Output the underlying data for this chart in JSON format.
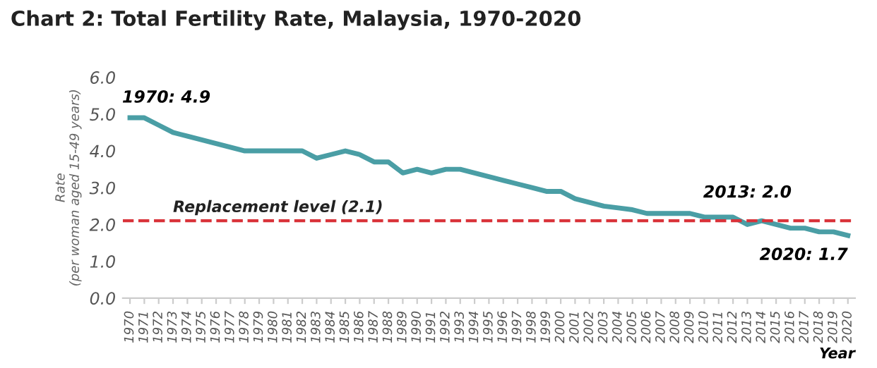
{
  "chart_data": {
    "type": "line",
    "title": "Chart 2: Total Fertility Rate, Malaysia, 1970-2020",
    "xlabel": "Year",
    "ylabel": "Rate\n(per woman aged 15-49 years)",
    "categories": [
      "1970",
      "1971",
      "1972",
      "1973",
      "1974",
      "1975",
      "1976",
      "1977",
      "1978",
      "1979",
      "1980",
      "1981",
      "1982",
      "1983",
      "1984",
      "1985",
      "1986",
      "1987",
      "1988",
      "1989",
      "1990",
      "1991",
      "1992",
      "1993",
      "1994",
      "1995",
      "1996",
      "1997",
      "1998",
      "1999",
      "2000",
      "2001",
      "2002",
      "2003",
      "2004",
      "2005",
      "2006",
      "2007",
      "2008",
      "2009",
      "2010",
      "2011",
      "2012",
      "2013",
      "2014",
      "2015",
      "2016",
      "2017",
      "2018",
      "2019",
      "2020"
    ],
    "series": [
      {
        "color": "#4a9ea5",
        "values": [
          4.9,
          4.9,
          4.7,
          4.5,
          4.4,
          4.3,
          4.2,
          4.1,
          4.0,
          4.0,
          4.0,
          4.0,
          4.0,
          3.8,
          3.9,
          4.0,
          3.9,
          3.7,
          3.7,
          3.4,
          3.5,
          3.4,
          3.5,
          3.5,
          3.4,
          3.3,
          3.2,
          3.1,
          3.0,
          2.9,
          2.9,
          2.7,
          2.6,
          2.5,
          2.45,
          2.4,
          2.3,
          2.3,
          2.3,
          2.3,
          2.2,
          2.2,
          2.2,
          2.0,
          2.1,
          2.0,
          1.9,
          1.9,
          1.8,
          1.8,
          1.7
        ]
      }
    ],
    "ylim": [
      0,
      6
    ],
    "yticks": [
      {
        "value": 0,
        "label": "0.0"
      },
      {
        "value": 1,
        "label": "1.0"
      },
      {
        "value": 2,
        "label": "2.0"
      },
      {
        "value": 3,
        "label": "3.0"
      },
      {
        "value": 4,
        "label": "4.0"
      },
      {
        "value": 5,
        "label": "5.0"
      },
      {
        "value": 6,
        "label": "6.0"
      }
    ],
    "ref_lines": [
      {
        "axis": "y",
        "value": 2.1,
        "label": "Replacement level (2.1)",
        "color": "#d9333a",
        "line_style": "dashed"
      }
    ],
    "annotations": [
      {
        "text": "1970: 4.9",
        "x": "1970",
        "y": 4.9
      },
      {
        "text": "2013: 2.0",
        "x": "2013",
        "y": 2.0
      },
      {
        "text": "2020: 1.7",
        "x": "2020",
        "y": 1.7
      }
    ],
    "grid": false,
    "legend": false,
    "marker": "none",
    "line_style": "solid"
  }
}
